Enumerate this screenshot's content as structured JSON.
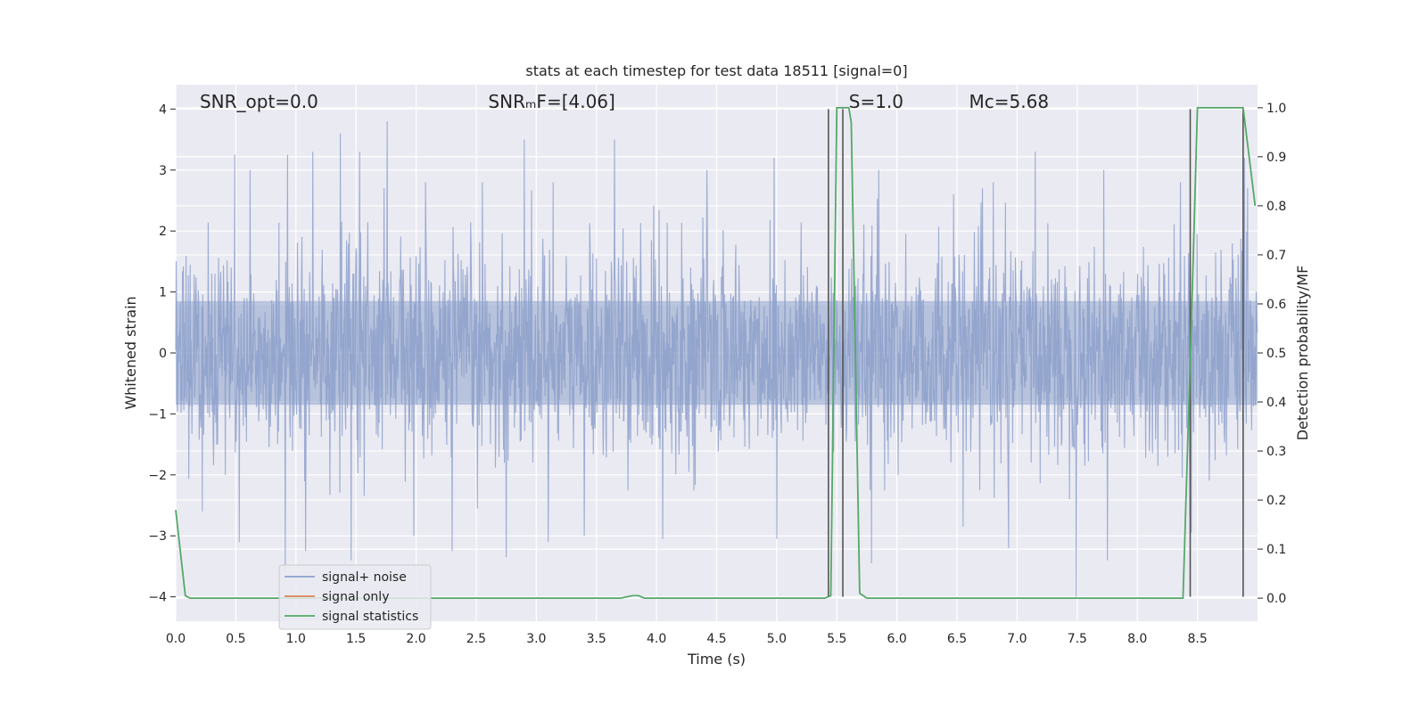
{
  "chart_data": {
    "type": "line",
    "title": "stats at each timestep for test data 18511 [signal=0]",
    "xlabel": "Time (s)",
    "ylabel": "Whitened strain",
    "y2label": "Detection probability/MF",
    "xlim": [
      0.0,
      9.0
    ],
    "ylim": [
      -4.4,
      4.4
    ],
    "y2lim": [
      -0.047,
      1.047
    ],
    "x_ticks": [
      0.0,
      0.5,
      1.0,
      1.5,
      2.0,
      2.5,
      3.0,
      3.5,
      4.0,
      4.5,
      5.0,
      5.5,
      6.0,
      6.5,
      7.0,
      7.5,
      8.0,
      8.5
    ],
    "x_tick_labels": [
      "0.0",
      "0.5",
      "1.0",
      "1.5",
      "2.0",
      "2.5",
      "3.0",
      "3.5",
      "4.0",
      "4.5",
      "5.0",
      "5.5",
      "6.0",
      "6.5",
      "7.0",
      "7.5",
      "8.0",
      "8.5"
    ],
    "y_ticks": [
      -4,
      -3,
      -2,
      -1,
      0,
      1,
      2,
      3,
      4
    ],
    "y_tick_labels": [
      "−4",
      "−3",
      "−2",
      "−1",
      "0",
      "1",
      "2",
      "3",
      "4"
    ],
    "y2_ticks": [
      0.0,
      0.1,
      0.2,
      0.3,
      0.4,
      0.5,
      0.6,
      0.7,
      0.8,
      0.9,
      1.0
    ],
    "y2_tick_labels": [
      "0.0",
      "0.1",
      "0.2",
      "0.3",
      "0.4",
      "0.5",
      "0.6",
      "0.7",
      "0.8",
      "0.9",
      "1.0"
    ],
    "grid": true,
    "legend_position": "lower-left",
    "annotations": [
      {
        "text": "SNR_opt=0.0",
        "x": 0.2
      },
      {
        "text": "SNRₘF=[4.06]",
        "x": 2.6
      },
      {
        "text": "S=1.0",
        "x": 5.6
      },
      {
        "text": "Mᴄ=5.68",
        "x": 6.6
      }
    ],
    "series": [
      {
        "name": "signal+ noise",
        "color": "#8da0cb",
        "axis": "left",
        "style": "noise",
        "sigma": 0.85,
        "x_range": [
          0.0,
          9.0
        ],
        "peaks": [
          [
            0.49,
            3.25
          ],
          [
            0.62,
            3.0
          ],
          [
            0.93,
            3.25
          ],
          [
            1.14,
            3.3
          ],
          [
            1.37,
            3.6
          ],
          [
            1.53,
            3.3
          ],
          [
            1.76,
            3.8
          ],
          [
            2.08,
            2.8
          ],
          [
            2.55,
            2.8
          ],
          [
            2.9,
            3.5
          ],
          [
            3.14,
            2.8
          ],
          [
            3.65,
            3.5
          ],
          [
            4.05,
            3.1
          ],
          [
            4.42,
            3.0
          ],
          [
            4.98,
            3.2
          ],
          [
            5.85,
            3.0
          ],
          [
            6.47,
            2.6
          ],
          [
            6.8,
            2.8
          ],
          [
            7.15,
            3.3
          ],
          [
            7.72,
            3.0
          ],
          [
            8.36,
            2.8
          ],
          [
            8.89,
            3.2
          ],
          [
            0.22,
            -2.6
          ],
          [
            0.53,
            -3.1
          ],
          [
            0.91,
            -3.6
          ],
          [
            1.08,
            -3.25
          ],
          [
            1.46,
            -3.4
          ],
          [
            1.98,
            -3.0
          ],
          [
            2.3,
            -3.25
          ],
          [
            2.75,
            -3.35
          ],
          [
            3.1,
            -3.1
          ],
          [
            3.4,
            -3.0
          ],
          [
            4.05,
            -3.05
          ],
          [
            5.0,
            -3.05
          ],
          [
            5.79,
            -3.45
          ],
          [
            6.55,
            -2.85
          ],
          [
            6.93,
            -3.2
          ],
          [
            7.49,
            -4.0
          ],
          [
            7.75,
            -3.4
          ],
          [
            8.45,
            -2.95
          ]
        ]
      },
      {
        "name": "signal only",
        "color": "#dd8452",
        "axis": "left",
        "x": [],
        "y": []
      },
      {
        "name": "signal statistics",
        "color": "#55a868",
        "axis": "right",
        "x": [
          0.0,
          0.08,
          0.12,
          0.5,
          1.0,
          2.0,
          3.0,
          3.7,
          3.8,
          3.85,
          3.9,
          4.5,
          5.0,
          5.4,
          5.45,
          5.5,
          5.6,
          5.62,
          5.69,
          5.75,
          6.0,
          7.0,
          8.0,
          8.38,
          8.46,
          8.5,
          8.88,
          8.98
        ],
        "y": [
          0.18,
          0.005,
          0.0,
          0.0,
          0.0,
          0.0,
          0.0,
          0.0,
          0.005,
          0.005,
          0.0,
          0.0,
          0.0,
          0.0,
          0.005,
          1.0,
          1.0,
          0.97,
          0.01,
          0.0,
          0.0,
          0.0,
          0.0,
          0.0,
          0.65,
          1.0,
          1.0,
          0.8
        ]
      }
    ],
    "vlines": [
      5.43,
      5.55,
      8.44,
      8.88
    ]
  }
}
